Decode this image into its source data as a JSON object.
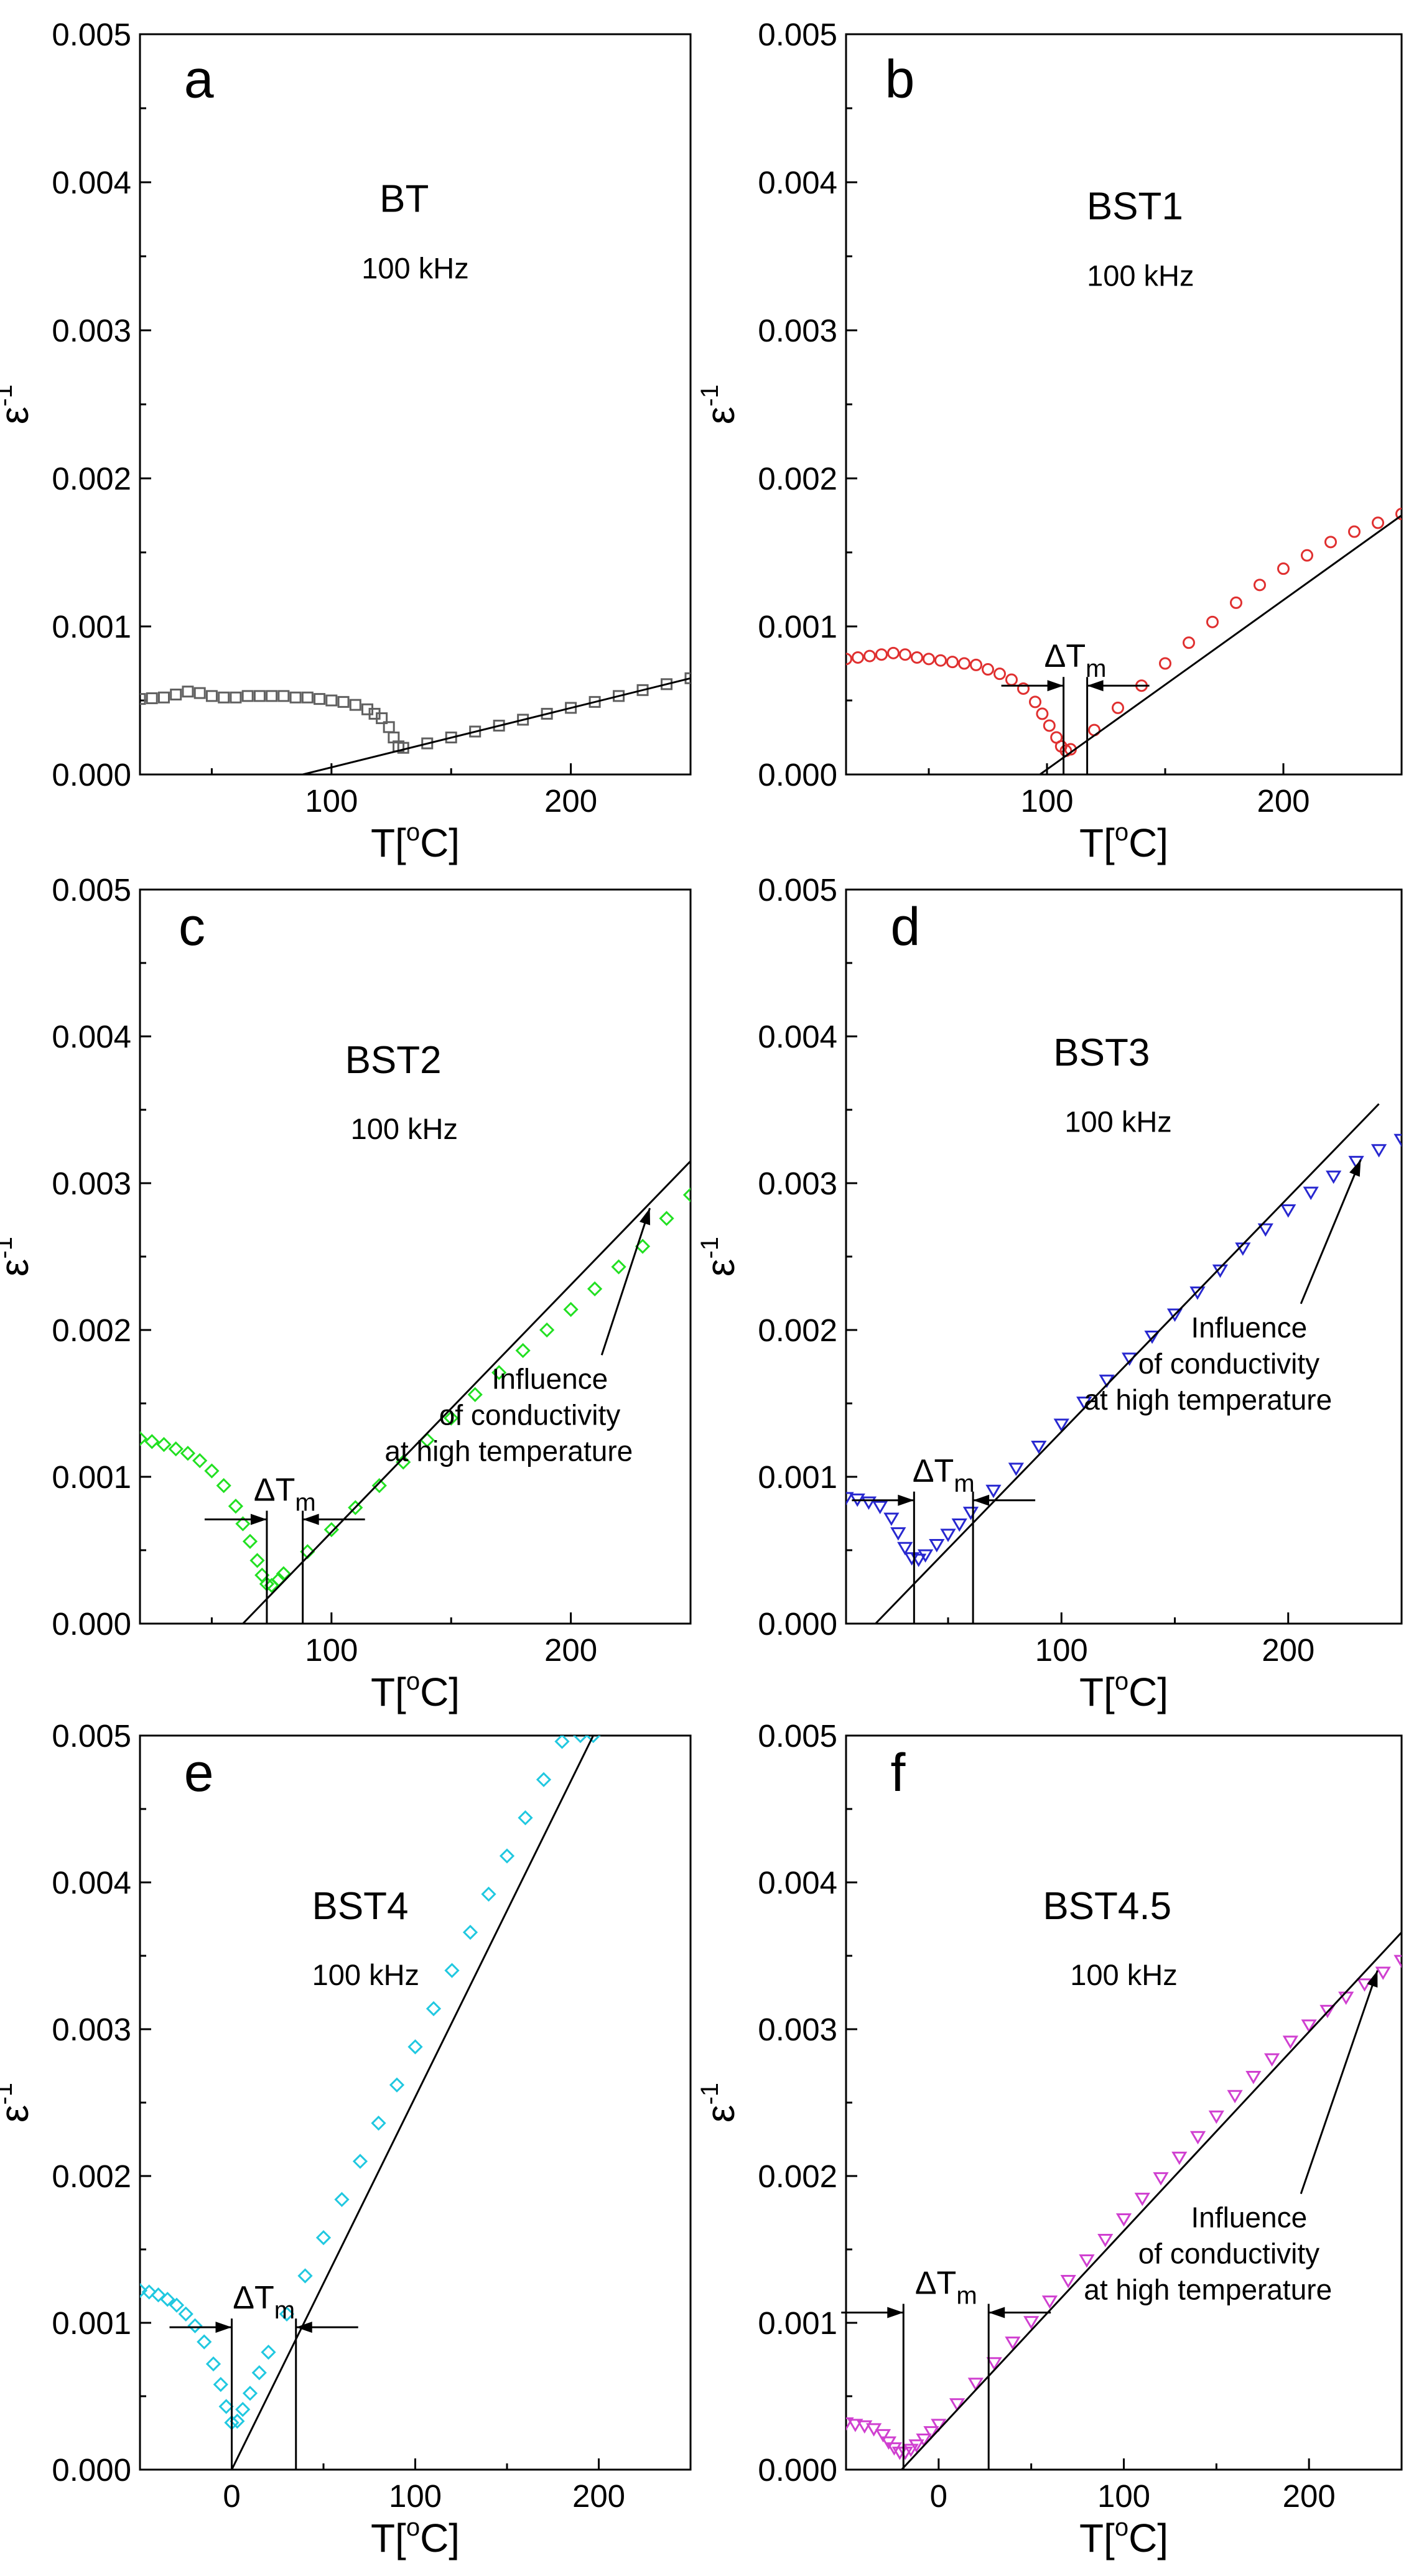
{
  "figure": {
    "colors": {
      "axis": "#000000",
      "fit_line": "#000000",
      "annotation": "#000000"
    }
  },
  "chart_data": [
    {
      "panel": "a",
      "type": "scatter",
      "sample": "BT",
      "frequency": "100 kHz",
      "xlabel": "T[oC]",
      "ylabel": "ε-1",
      "xlim": [
        20,
        250
      ],
      "ylim": [
        0,
        0.005
      ],
      "xticks": [
        100,
        200
      ],
      "yticks": [
        0.0,
        0.001,
        0.002,
        0.003,
        0.004,
        0.005
      ],
      "color": "#606060",
      "marker": "square",
      "series": [
        {
          "x": [
            20,
            25,
            30,
            35,
            40,
            45,
            50,
            55,
            60,
            65,
            70,
            75,
            80,
            85,
            90,
            95,
            100,
            105,
            110,
            115,
            118,
            121,
            124,
            126,
            128,
            130,
            140,
            150,
            160,
            170,
            180,
            190,
            200,
            210,
            220,
            230,
            240,
            250
          ],
          "y": [
            0.00051,
            0.000515,
            0.00052,
            0.00054,
            0.00056,
            0.00055,
            0.00053,
            0.00052,
            0.00052,
            0.00053,
            0.00053,
            0.00053,
            0.00053,
            0.00052,
            0.00052,
            0.00051,
            0.0005,
            0.00049,
            0.00047,
            0.00044,
            0.00041,
            0.00038,
            0.00032,
            0.00025,
            0.00019,
            0.00018,
            0.00021,
            0.00025,
            0.00029,
            0.00033,
            0.00037,
            0.00041,
            0.00045,
            0.00049,
            0.00053,
            0.00057,
            0.00061,
            0.00065
          ]
        }
      ],
      "fit_line": {
        "x": [
          88,
          250
        ],
        "y": [
          0.0,
          0.00065
        ]
      }
    },
    {
      "panel": "b",
      "type": "scatter",
      "sample": "BST1",
      "frequency": "100 kHz",
      "xlabel": "T[oC]",
      "ylabel": "ε-1",
      "xlim": [
        15,
        250
      ],
      "ylim": [
        0,
        0.005
      ],
      "xticks": [
        100,
        200
      ],
      "yticks": [
        0.0,
        0.001,
        0.002,
        0.003,
        0.004,
        0.005
      ],
      "color": "#e03030",
      "marker": "circle",
      "series": [
        {
          "x": [
            15,
            20,
            25,
            30,
            35,
            40,
            45,
            50,
            55,
            60,
            65,
            70,
            75,
            80,
            85,
            90,
            95,
            98,
            101,
            104,
            106,
            108,
            110,
            120,
            130,
            140,
            150,
            160,
            170,
            180,
            190,
            200,
            210,
            220,
            230,
            240,
            250
          ],
          "y": [
            0.00078,
            0.00079,
            0.0008,
            0.00081,
            0.00082,
            0.00081,
            0.00079,
            0.00078,
            0.00077,
            0.00076,
            0.00075,
            0.00074,
            0.00071,
            0.00068,
            0.00064,
            0.00058,
            0.00049,
            0.00041,
            0.00033,
            0.00025,
            0.00019,
            0.00016,
            0.00017,
            0.0003,
            0.00045,
            0.0006,
            0.00075,
            0.00089,
            0.00103,
            0.00116,
            0.00128,
            0.00139,
            0.00148,
            0.00157,
            0.00164,
            0.0017,
            0.00176
          ]
        }
      ],
      "fit_line": {
        "x": [
          97,
          250
        ],
        "y": [
          0.0,
          0.00175
        ]
      },
      "delta_tm": {
        "label_main": "ΔT",
        "label_sub": "m",
        "t1": 107,
        "t2": 117,
        "y": 0.0006
      }
    },
    {
      "panel": "c",
      "type": "scatter",
      "sample": "BST2",
      "frequency": "100 kHz",
      "xlabel": "T[oC]",
      "ylabel": "ε-1",
      "xlim": [
        20,
        250
      ],
      "ylim": [
        0,
        0.005
      ],
      "xticks": [
        100,
        200
      ],
      "yticks": [
        0.0,
        0.001,
        0.002,
        0.003,
        0.004,
        0.005
      ],
      "color": "#22e022",
      "marker": "diamond",
      "series": [
        {
          "x": [
            20,
            25,
            30,
            35,
            40,
            45,
            50,
            55,
            60,
            63,
            66,
            69,
            71,
            73,
            75,
            78,
            80,
            90,
            100,
            110,
            120,
            130,
            140,
            150,
            160,
            170,
            180,
            190,
            200,
            210,
            220,
            230,
            240,
            250
          ],
          "y": [
            0.00126,
            0.00124,
            0.00122,
            0.00119,
            0.00116,
            0.00111,
            0.00104,
            0.00094,
            0.0008,
            0.00068,
            0.00056,
            0.00043,
            0.00033,
            0.00027,
            0.00026,
            0.0003,
            0.00034,
            0.00049,
            0.00064,
            0.00079,
            0.00094,
            0.0011,
            0.00125,
            0.0014,
            0.00156,
            0.00171,
            0.00186,
            0.002,
            0.00214,
            0.00228,
            0.00243,
            0.00257,
            0.00276,
            0.00292
          ]
        }
      ],
      "fit_line": {
        "x": [
          63,
          250
        ],
        "y": [
          0.0,
          0.00315
        ]
      },
      "delta_tm": {
        "label_main": "ΔT",
        "label_sub": "m",
        "t1": 73,
        "t2": 88,
        "y": 0.00071
      },
      "annotation": {
        "lines": [
          "Influence",
          "of conductivity",
          "at high temperature"
        ],
        "arrow_to": [
          233,
          0.00283
        ]
      }
    },
    {
      "panel": "d",
      "type": "scatter",
      "sample": "BST3",
      "frequency": "100 kHz",
      "xlabel": "T[oC]",
      "ylabel": "ε-1",
      "xlim": [
        5,
        250
      ],
      "ylim": [
        0,
        0.005
      ],
      "xticks": [
        100,
        200
      ],
      "yticks": [
        0.0,
        0.001,
        0.002,
        0.003,
        0.004,
        0.005
      ],
      "color": "#2828d0",
      "marker": "triangle-down",
      "series": [
        {
          "x": [
            5,
            10,
            15,
            20,
            25,
            28,
            31,
            34,
            37,
            40,
            45,
            50,
            55,
            60,
            70,
            80,
            90,
            100,
            110,
            120,
            130,
            140,
            150,
            160,
            170,
            180,
            190,
            200,
            210,
            220,
            230,
            240,
            250
          ],
          "y": [
            0.00086,
            0.00085,
            0.00083,
            0.0008,
            0.00072,
            0.00062,
            0.00052,
            0.00045,
            0.00044,
            0.00047,
            0.00054,
            0.00061,
            0.00068,
            0.00076,
            0.00091,
            0.00106,
            0.00121,
            0.00136,
            0.00151,
            0.00166,
            0.00181,
            0.00196,
            0.00211,
            0.00226,
            0.00241,
            0.00256,
            0.00269,
            0.00282,
            0.00294,
            0.00305,
            0.00315,
            0.00323,
            0.0033
          ]
        }
      ],
      "fit_line": {
        "x": [
          18,
          240
        ],
        "y": [
          0.0,
          0.00354
        ]
      },
      "delta_tm": {
        "label_main": "ΔT",
        "label_sub": "m",
        "t1": 35,
        "t2": 61,
        "y": 0.00084
      },
      "annotation": {
        "lines": [
          "Influence",
          "of conductivity",
          "at high temperature"
        ],
        "arrow_to": [
          232,
          0.00316
        ]
      }
    },
    {
      "panel": "e",
      "type": "scatter",
      "sample": "BST4",
      "frequency": "100 kHz",
      "xlabel": "T[oC]",
      "ylabel": "ε-1",
      "xlim": [
        -50,
        250
      ],
      "ylim": [
        0,
        0.005
      ],
      "xticks": [
        0,
        100,
        200
      ],
      "yticks": [
        0.0,
        0.001,
        0.002,
        0.003,
        0.004,
        0.005
      ],
      "color": "#20c8e0",
      "marker": "diamond",
      "series": [
        {
          "x": [
            -50,
            -45,
            -40,
            -35,
            -30,
            -25,
            -20,
            -15,
            -10,
            -6,
            -3,
            0,
            3,
            6,
            10,
            15,
            20,
            30,
            40,
            50,
            60,
            70,
            80,
            90,
            100,
            110,
            120,
            130,
            140,
            150,
            160,
            170,
            180,
            190,
            197
          ],
          "y": [
            0.00122,
            0.00121,
            0.00119,
            0.00116,
            0.00112,
            0.00106,
            0.00098,
            0.00087,
            0.00072,
            0.00058,
            0.00043,
            0.00032,
            0.00033,
            0.00041,
            0.00052,
            0.00066,
            0.0008,
            0.00106,
            0.00132,
            0.00158,
            0.00184,
            0.0021,
            0.00236,
            0.00262,
            0.00288,
            0.00314,
            0.0034,
            0.00366,
            0.00392,
            0.00418,
            0.00444,
            0.0047,
            0.00496,
            0.005,
            0.005
          ]
        }
      ],
      "fit_line": {
        "x": [
          0,
          197
        ],
        "y": [
          0.0,
          0.005
        ]
      },
      "delta_tm": {
        "label_main": "ΔT",
        "label_sub": "m",
        "t1": 0,
        "t2": 35,
        "y": 0.00097
      }
    },
    {
      "panel": "f",
      "type": "scatter",
      "sample": "BST4.5",
      "frequency": "100 kHz",
      "xlabel": "T[oC]",
      "ylabel": "ε-1",
      "xlim": [
        -50,
        250
      ],
      "ylim": [
        0,
        0.005
      ],
      "xticks": [
        0,
        100,
        200
      ],
      "yticks": [
        0.0,
        0.001,
        0.002,
        0.003,
        0.004,
        0.005
      ],
      "color": "#d040d0",
      "marker": "triangle-down",
      "series": [
        {
          "x": [
            -50,
            -45,
            -40,
            -35,
            -30,
            -27,
            -24,
            -21,
            -18,
            -15,
            -12,
            -8,
            -4,
            0,
            10,
            20,
            30,
            40,
            50,
            60,
            70,
            80,
            90,
            100,
            110,
            120,
            130,
            140,
            150,
            160,
            170,
            180,
            190,
            200,
            210,
            220,
            230,
            240,
            250
          ],
          "y": [
            0.00032,
            0.00031,
            0.0003,
            0.00028,
            0.00024,
            0.00019,
            0.00015,
            0.00012,
            0.00012,
            0.00014,
            0.00017,
            0.00021,
            0.00026,
            0.00031,
            0.00045,
            0.00059,
            0.00073,
            0.00087,
            0.00101,
            0.00115,
            0.00129,
            0.00143,
            0.00157,
            0.00171,
            0.00185,
            0.00199,
            0.00213,
            0.00227,
            0.00241,
            0.00255,
            0.00268,
            0.0028,
            0.00292,
            0.00303,
            0.00313,
            0.00322,
            0.00331,
            0.00339,
            0.00347
          ]
        }
      ],
      "fit_line": {
        "x": [
          -20,
          250
        ],
        "y": [
          0.0,
          0.00366
        ]
      },
      "delta_tm": {
        "label_main": "ΔT",
        "label_sub": "m",
        "t1": -19,
        "t2": 27,
        "y": 0.00107
      },
      "annotation": {
        "lines": [
          "Influence",
          "of conductivity",
          "at high temperature"
        ],
        "arrow_to": [
          237,
          0.0034
        ]
      }
    }
  ]
}
